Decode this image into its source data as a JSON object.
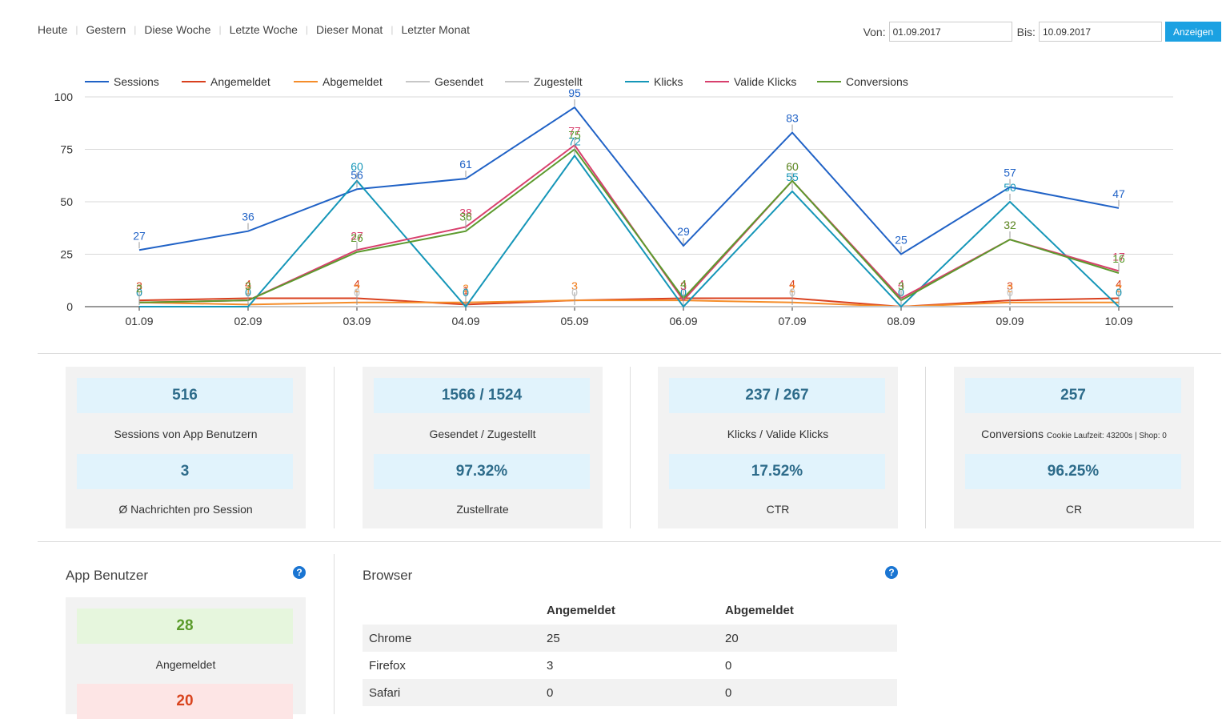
{
  "quick_ranges": [
    "Heute",
    "Gestern",
    "Diese Woche",
    "Letzte Woche",
    "Dieser Monat",
    "Letzter Monat"
  ],
  "range": {
    "from_label": "Von:",
    "from_value": "01.09.2017",
    "to_label": "Bis:",
    "to_value": "10.09.2017",
    "button": "Anzeigen"
  },
  "chart_data": {
    "type": "line",
    "categories": [
      "01.09",
      "02.09",
      "03.09",
      "04.09",
      "05.09",
      "06.09",
      "07.09",
      "08.09",
      "09.09",
      "10.09"
    ],
    "ylim": [
      0,
      100
    ],
    "yticks": [
      0,
      25,
      50,
      75,
      100
    ],
    "series": [
      {
        "name": "Sessions",
        "color": "#2062c6",
        "values": [
          27,
          36,
          56,
          61,
          95,
          29,
          83,
          25,
          57,
          47
        ]
      },
      {
        "name": "Angemeldet",
        "color": "#d9401e",
        "values": [
          3,
          4,
          4,
          1,
          3,
          4,
          4,
          0,
          3,
          4
        ]
      },
      {
        "name": "Abgemeldet",
        "color": "#f58d2a",
        "values": [
          2,
          1,
          2,
          2,
          3,
          3,
          2,
          0,
          2,
          2
        ]
      },
      {
        "name": "Gesendet",
        "color": "#c7c7c7",
        "values": [
          0,
          0,
          0,
          0,
          0,
          0,
          0,
          0,
          0,
          0
        ]
      },
      {
        "name": "Zugestellt",
        "color": "#c7c7c7",
        "values": [
          0,
          0,
          0,
          0,
          0,
          0,
          0,
          0,
          0,
          0
        ]
      },
      {
        "name": "Klicks",
        "color": "#1596b8",
        "values": [
          0,
          0,
          60,
          0,
          72,
          0,
          55,
          0,
          50,
          0
        ]
      },
      {
        "name": "Valide Klicks",
        "color": "#d8406d",
        "values": [
          2,
          3,
          27,
          38,
          77,
          3,
          60,
          4,
          32,
          17
        ]
      },
      {
        "name": "Conversions",
        "color": "#5c9a2d",
        "values": [
          2,
          3,
          26,
          36,
          75,
          4,
          60,
          3,
          32,
          16
        ]
      }
    ],
    "legend_position": "top"
  },
  "stats": [
    {
      "value1": "516",
      "caption1": "Sessions von App Benutzern",
      "caption1_small": "",
      "value2": "3",
      "caption2": "Ø Nachrichten pro Session"
    },
    {
      "value1": "1566 / 1524",
      "caption1": "Gesendet / Zugestellt",
      "caption1_small": "",
      "value2": "97.32%",
      "caption2": "Zustellrate"
    },
    {
      "value1": "237 / 267",
      "caption1": "Klicks / Valide Klicks",
      "caption1_small": "",
      "value2": "17.52%",
      "caption2": "CTR"
    },
    {
      "value1": "257",
      "caption1": "Conversions",
      "caption1_small": "Cookie Laufzeit: 43200s | Shop: 0",
      "value2": "96.25%",
      "caption2": "CR"
    }
  ],
  "app_users": {
    "title": "App Benutzer",
    "signed_in_value": "28",
    "signed_in_label": "Angemeldet",
    "signed_out_value": "20",
    "colors": {
      "green_bg": "#e6f6dd",
      "green_text": "#5a9b2a",
      "red_bg": "#fde5e5",
      "red_text": "#d9441e"
    }
  },
  "browser": {
    "title": "Browser",
    "headers": [
      "",
      "Angemeldet",
      "Abgemeldet"
    ],
    "rows": [
      [
        "Chrome",
        "25",
        "20"
      ],
      [
        "Firefox",
        "3",
        "0"
      ],
      [
        "Safari",
        "0",
        "0"
      ]
    ]
  },
  "help_glyph": "?"
}
